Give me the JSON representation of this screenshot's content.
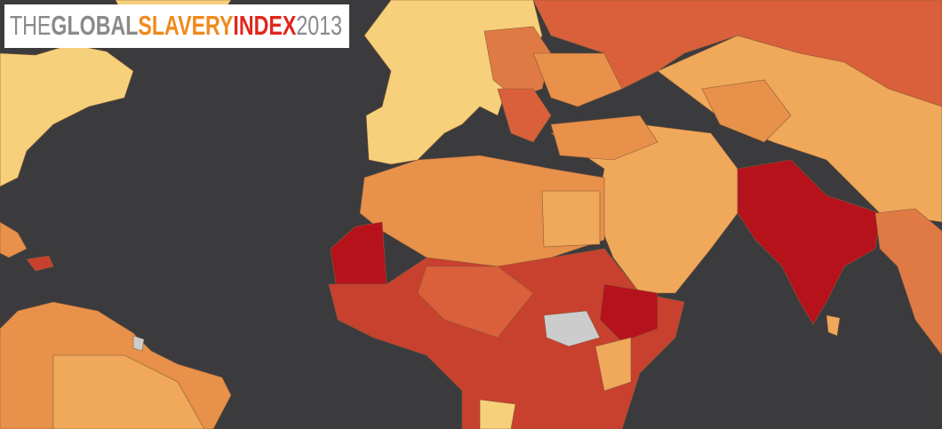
{
  "header": {
    "title_parts": [
      "THE",
      "GLOBAL",
      "SLAVERY",
      "INDEX",
      "2013"
    ]
  }
}
